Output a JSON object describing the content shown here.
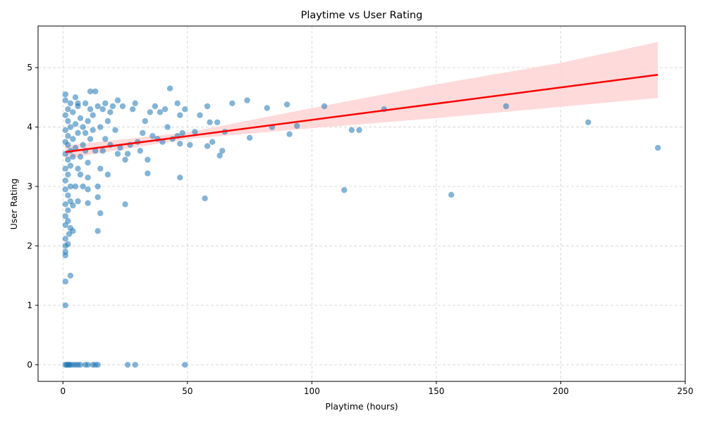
{
  "chart_data": {
    "type": "scatter",
    "title": "Playtime vs User Rating",
    "xlabel": "Playtime (hours)",
    "ylabel": "User Rating",
    "xlim": [
      -10,
      250
    ],
    "ylim": [
      -0.28,
      5.7
    ],
    "xticks": [
      "0",
      "50",
      "100",
      "150",
      "200",
      "250"
    ],
    "xtick_values": [
      0,
      50,
      100,
      150,
      200,
      250
    ],
    "yticks": [
      "0",
      "1",
      "2",
      "3",
      "4",
      "5"
    ],
    "ytick_values": [
      0,
      1,
      2,
      3,
      4,
      5
    ],
    "grid": true,
    "grid_style": "dashed",
    "colors": {
      "points": "#1f77b4",
      "regression": "#ff0000",
      "band": "#ffd6d6"
    },
    "regression": {
      "x": [
        1,
        239
      ],
      "y": [
        3.58,
        4.88
      ],
      "ci_upper": [
        [
          1,
          3.69
        ],
        [
          50,
          3.91
        ],
        [
          100,
          4.32
        ],
        [
          150,
          4.72
        ],
        [
          200,
          5.08
        ],
        [
          239,
          5.43
        ]
      ],
      "ci_lower": [
        [
          239,
          4.49
        ],
        [
          200,
          4.34
        ],
        [
          150,
          4.15
        ],
        [
          100,
          3.98
        ],
        [
          50,
          3.8
        ],
        [
          1,
          3.47
        ]
      ]
    },
    "points": [
      [
        1,
        0
      ],
      [
        1.5,
        0
      ],
      [
        2,
        0
      ],
      [
        2.5,
        0
      ],
      [
        3,
        0
      ],
      [
        4,
        0
      ],
      [
        5,
        0
      ],
      [
        6,
        0
      ],
      [
        7,
        0
      ],
      [
        9,
        0
      ],
      [
        10,
        0
      ],
      [
        12,
        0
      ],
      [
        13,
        0
      ],
      [
        14,
        0
      ],
      [
        26,
        0
      ],
      [
        29,
        0
      ],
      [
        49,
        0
      ],
      [
        1,
        1.0
      ],
      [
        1,
        1.4
      ],
      [
        3,
        1.5
      ],
      [
        1,
        1.84
      ],
      [
        1,
        1.9
      ],
      [
        1,
        2.0
      ],
      [
        2,
        2.03
      ],
      [
        1,
        2.12
      ],
      [
        2.5,
        2.2
      ],
      [
        4,
        2.25
      ],
      [
        3,
        2.3
      ],
      [
        2,
        2.42
      ],
      [
        1,
        2.35
      ],
      [
        1,
        2.5
      ],
      [
        2,
        2.6
      ],
      [
        1,
        2.7
      ],
      [
        4,
        2.68
      ],
      [
        3,
        2.75
      ],
      [
        6,
        2.75
      ],
      [
        2,
        2.85
      ],
      [
        1,
        2.95
      ],
      [
        3,
        3.0
      ],
      [
        5,
        3.0
      ],
      [
        1,
        3.1
      ],
      [
        2,
        3.2
      ],
      [
        1,
        3.3
      ],
      [
        3,
        3.35
      ],
      [
        2,
        3.45
      ],
      [
        4,
        3.5
      ],
      [
        1,
        3.55
      ],
      [
        3,
        3.6
      ],
      [
        5,
        3.65
      ],
      [
        2,
        3.7
      ],
      [
        1,
        3.75
      ],
      [
        4,
        3.8
      ],
      [
        2,
        3.85
      ],
      [
        6,
        3.9
      ],
      [
        1,
        3.95
      ],
      [
        3,
        4.0
      ],
      [
        5,
        4.05
      ],
      [
        2,
        4.1
      ],
      [
        7,
        4.15
      ],
      [
        1,
        4.2
      ],
      [
        4,
        4.25
      ],
      [
        2,
        4.3
      ],
      [
        6,
        4.35
      ],
      [
        3,
        4.4
      ],
      [
        1,
        4.45
      ],
      [
        5,
        4.5
      ],
      [
        1,
        4.55
      ],
      [
        6,
        3.3
      ],
      [
        7,
        3.5
      ],
      [
        8,
        3.7
      ],
      [
        9,
        3.9
      ],
      [
        10,
        4.1
      ],
      [
        11,
        4.3
      ],
      [
        6,
        4.4
      ],
      [
        8,
        4.0
      ],
      [
        9,
        3.6
      ],
      [
        10,
        3.4
      ],
      [
        11,
        3.8
      ],
      [
        12,
        4.2
      ],
      [
        7,
        3.2
      ],
      [
        8,
        3.0
      ],
      [
        10,
        3.15
      ],
      [
        9,
        4.4
      ],
      [
        12,
        3.95
      ],
      [
        13,
        3.6
      ],
      [
        14,
        4.35
      ],
      [
        11,
        4.6
      ],
      [
        13,
        4.6
      ],
      [
        10,
        2.72
      ],
      [
        10,
        2.95
      ],
      [
        14,
        3.0
      ],
      [
        14,
        2.82
      ],
      [
        15,
        2.55
      ],
      [
        14,
        2.25
      ],
      [
        15,
        3.3
      ],
      [
        16,
        3.6
      ],
      [
        17,
        3.8
      ],
      [
        15,
        4.0
      ],
      [
        16,
        4.3
      ],
      [
        17,
        4.4
      ],
      [
        18,
        3.2
      ],
      [
        18,
        4.1
      ],
      [
        19,
        4.25
      ],
      [
        20,
        4.35
      ],
      [
        19,
        3.7
      ],
      [
        21,
        3.95
      ],
      [
        22,
        3.55
      ],
      [
        22,
        4.45
      ],
      [
        23,
        3.65
      ],
      [
        24,
        4.35
      ],
      [
        25,
        2.7
      ],
      [
        25,
        3.45
      ],
      [
        26,
        3.55
      ],
      [
        27,
        3.7
      ],
      [
        28,
        4.3
      ],
      [
        29,
        4.4
      ],
      [
        30,
        3.75
      ],
      [
        31,
        3.6
      ],
      [
        32,
        3.9
      ],
      [
        33,
        4.1
      ],
      [
        34,
        3.22
      ],
      [
        34,
        3.45
      ],
      [
        35,
        4.25
      ],
      [
        36,
        3.85
      ],
      [
        37,
        4.35
      ],
      [
        38,
        3.8
      ],
      [
        39,
        4.25
      ],
      [
        40,
        3.75
      ],
      [
        41,
        4.3
      ],
      [
        42,
        4.0
      ],
      [
        43,
        4.65
      ],
      [
        44,
        3.8
      ],
      [
        46,
        4.4
      ],
      [
        46,
        3.85
      ],
      [
        47,
        3.15
      ],
      [
        47,
        3.72
      ],
      [
        47,
        4.2
      ],
      [
        48,
        3.9
      ],
      [
        49,
        4.3
      ],
      [
        51,
        3.7
      ],
      [
        53,
        3.92
      ],
      [
        55,
        4.2
      ],
      [
        57,
        2.8
      ],
      [
        58,
        4.35
      ],
      [
        58,
        3.68
      ],
      [
        59,
        4.08
      ],
      [
        60,
        3.75
      ],
      [
        62,
        4.08
      ],
      [
        63,
        3.52
      ],
      [
        64,
        3.6
      ],
      [
        65,
        3.92
      ],
      [
        68,
        4.4
      ],
      [
        74,
        4.45
      ],
      [
        75,
        3.82
      ],
      [
        82,
        4.32
      ],
      [
        84,
        4.0
      ],
      [
        90,
        4.38
      ],
      [
        91,
        3.88
      ],
      [
        94,
        4.02
      ],
      [
        105,
        4.35
      ],
      [
        113,
        2.94
      ],
      [
        116,
        3.95
      ],
      [
        119,
        3.95
      ],
      [
        129,
        4.3
      ],
      [
        156,
        2.86
      ],
      [
        178,
        4.35
      ],
      [
        211,
        4.08
      ],
      [
        239,
        3.65
      ]
    ]
  }
}
